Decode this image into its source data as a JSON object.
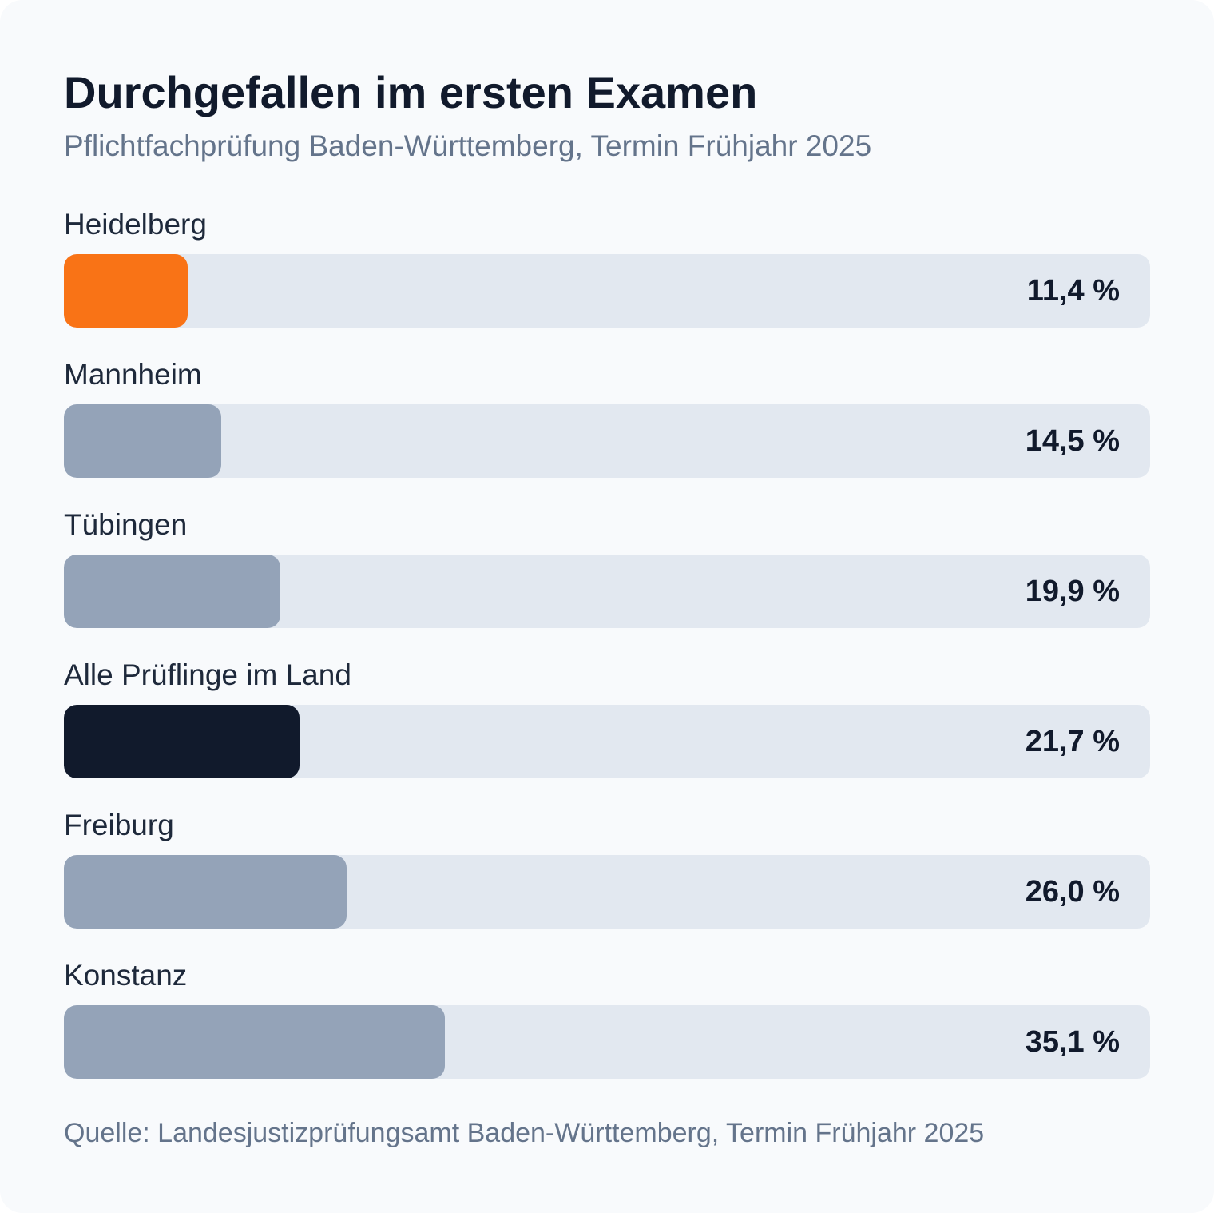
{
  "title": "Durchgefallen im ersten Examen",
  "subtitle": "Pflichtfachprüfung Baden-Württemberg, Termin Frühjahr 2025",
  "source": "Quelle: Landesjustizprüfungsamt Baden-Württemberg, Termin Frühjahr 2025",
  "colors": {
    "highlight": "#f97316",
    "default": "#94a3b8",
    "total": "#111a2c",
    "track": "#e2e8f0"
  },
  "chart_data": {
    "type": "bar",
    "orientation": "horizontal",
    "title": "Durchgefallen im ersten Examen",
    "subtitle": "Pflichtfachprüfung Baden-Württemberg, Termin Frühjahr 2025",
    "xlim": [
      0,
      100
    ],
    "grid": false,
    "categories": [
      "Heidelberg",
      "Mannheim",
      "Tübingen",
      "Alle Prüflinge im Land",
      "Freiburg",
      "Konstanz"
    ],
    "values": [
      11.4,
      14.5,
      19.9,
      21.7,
      26.0,
      35.1
    ],
    "value_labels": [
      "11,4 %",
      "14,5 %",
      "19,9 %",
      "21,7 %",
      "26,0 %",
      "35,1 %"
    ],
    "bar_colors": [
      "highlight",
      "default",
      "default",
      "total",
      "default",
      "default"
    ]
  }
}
